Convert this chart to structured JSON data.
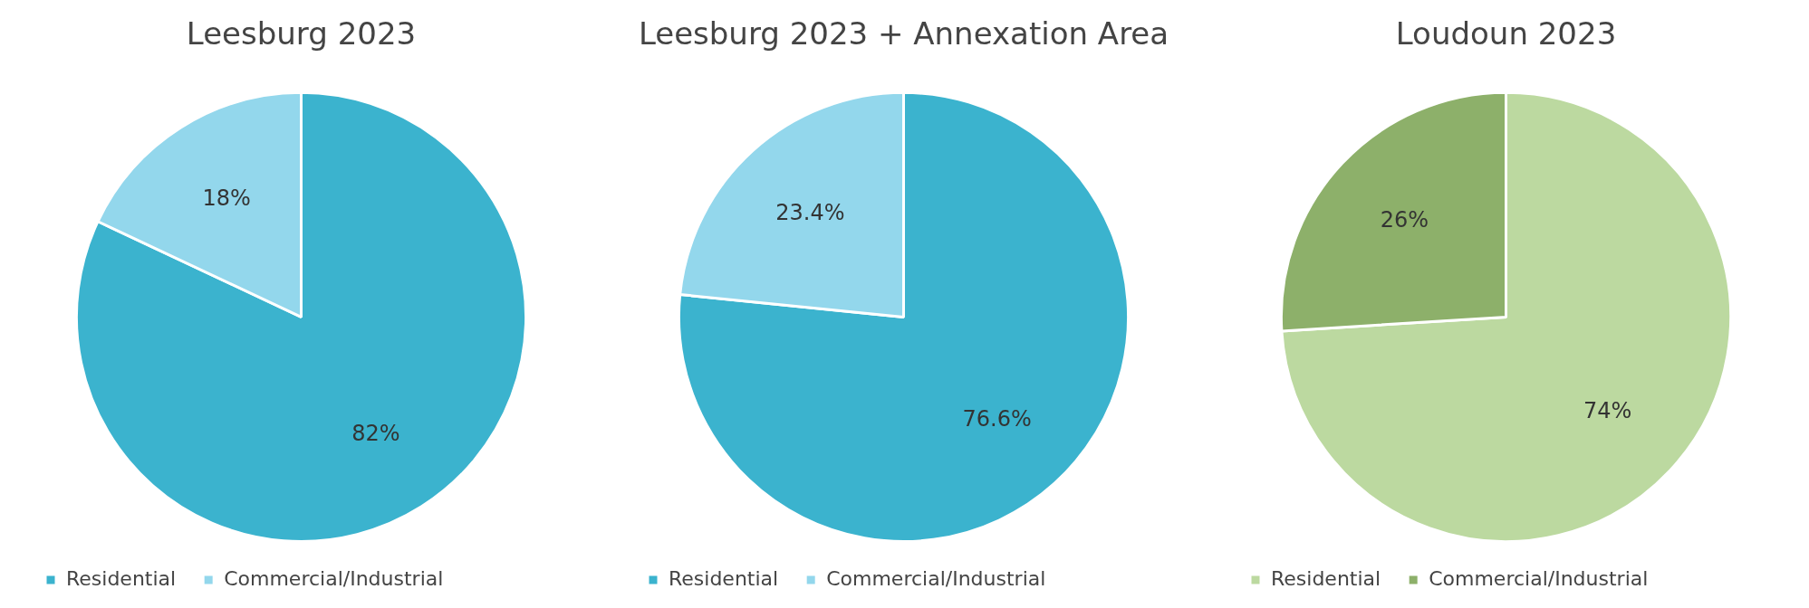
{
  "chart_data": [
    {
      "type": "pie",
      "title": "Leesburg 2023",
      "categories": [
        "Residential",
        "Commercial/Industrial"
      ],
      "values": [
        82,
        18
      ],
      "colors": [
        "#3bb3ce",
        "#93d7ec"
      ],
      "value_labels": [
        "82%",
        "18%"
      ],
      "legend": "bottom"
    },
    {
      "type": "pie",
      "title": "Leesburg 2023 + Annexation Area",
      "categories": [
        "Residential",
        "Commercial/Industrial"
      ],
      "values": [
        76.6,
        23.4
      ],
      "colors": [
        "#3bb3ce",
        "#93d7ec"
      ],
      "value_labels": [
        "76.6%",
        "23.4%"
      ],
      "legend": "bottom"
    },
    {
      "type": "pie",
      "title": "Loudoun 2023",
      "categories": [
        "Residential",
        "Commercial/Industrial"
      ],
      "values": [
        74,
        26
      ],
      "colors": [
        "#bcd9a0",
        "#8db06a"
      ],
      "value_labels": [
        "74%",
        "26%"
      ],
      "legend": "bottom"
    }
  ]
}
